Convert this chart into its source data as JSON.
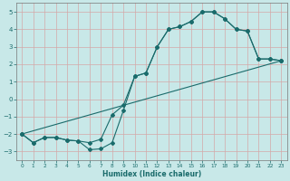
{
  "xlabel": "Humidex (Indice chaleur)",
  "bg_color": "#c8e8e8",
  "grid_color": "#d4a8a8",
  "line_color": "#1a6b6b",
  "xlim": [
    -0.5,
    23.5
  ],
  "ylim": [
    -3.5,
    5.5
  ],
  "xticks": [
    0,
    1,
    2,
    3,
    4,
    5,
    6,
    7,
    8,
    9,
    10,
    11,
    12,
    13,
    14,
    15,
    16,
    17,
    18,
    19,
    20,
    21,
    22,
    23
  ],
  "yticks": [
    -3,
    -2,
    -1,
    0,
    1,
    2,
    3,
    4,
    5
  ],
  "line1_x": [
    0,
    1,
    2,
    3,
    4,
    5,
    6,
    7,
    8,
    9,
    10,
    11,
    12,
    13,
    14,
    15,
    16,
    17,
    18,
    19,
    20,
    21,
    22,
    23
  ],
  "line1_y": [
    -2.0,
    -2.5,
    -2.2,
    -2.2,
    -2.35,
    -2.4,
    -2.9,
    -2.85,
    -2.5,
    -0.65,
    1.3,
    1.5,
    3.0,
    4.0,
    4.15,
    4.45,
    5.0,
    5.0,
    4.6,
    4.0,
    3.9,
    2.3,
    2.3,
    2.2
  ],
  "line2_x": [
    0,
    1,
    2,
    3,
    4,
    5,
    6,
    7,
    8,
    9,
    10,
    11,
    12,
    13,
    14,
    15,
    16,
    17,
    18,
    19,
    20,
    21,
    22,
    23
  ],
  "line2_y": [
    -2.0,
    -2.5,
    -2.2,
    -2.2,
    -2.35,
    -2.4,
    -2.5,
    -2.3,
    -0.9,
    -0.35,
    1.3,
    1.5,
    3.0,
    4.0,
    4.15,
    4.45,
    5.0,
    5.0,
    4.6,
    4.0,
    3.9,
    2.3,
    2.3,
    2.2
  ],
  "line3_x": [
    0,
    23
  ],
  "line3_y": [
    -2.0,
    2.2
  ]
}
